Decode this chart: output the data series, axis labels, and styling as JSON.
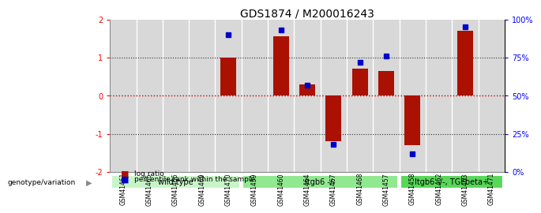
{
  "title": "GDS1874 / M200016243",
  "samples": [
    "GSM41461",
    "GSM41465",
    "GSM41466",
    "GSM41469",
    "GSM41470",
    "GSM41459",
    "GSM41460",
    "GSM41464",
    "GSM41467",
    "GSM41468",
    "GSM41457",
    "GSM41458",
    "GSM41462",
    "GSM41463",
    "GSM41471"
  ],
  "log_ratio": [
    0,
    0,
    0,
    0,
    1.0,
    0,
    1.55,
    0.3,
    -1.2,
    0.7,
    0.65,
    -1.3,
    0,
    1.7,
    0
  ],
  "percentile_rank": [
    null,
    null,
    null,
    null,
    90,
    null,
    93,
    57,
    18,
    72,
    76,
    12,
    null,
    95,
    null
  ],
  "groups": [
    {
      "label": "wild type",
      "start": 0,
      "end": 5,
      "color": "#c8f5c8"
    },
    {
      "label": "Itgb6 -/-",
      "start": 5,
      "end": 11,
      "color": "#90e890"
    },
    {
      "label": "Itgb6 -/-, TGFbeta+",
      "start": 11,
      "end": 15,
      "color": "#58d858"
    }
  ],
  "ylim": [
    -2,
    2
  ],
  "yticks_left": [
    -2,
    -1,
    0,
    1,
    2
  ],
  "bar_color": "#aa1100",
  "dot_color": "#0000cc",
  "zero_line_color": "#cc0000",
  "grid_line_color": "#333333",
  "bg_color": "#ffffff",
  "bar_width": 0.6,
  "legend_items": [
    "log ratio",
    "percentile rank within the sample"
  ],
  "cell_bg": "#d8d8d8"
}
